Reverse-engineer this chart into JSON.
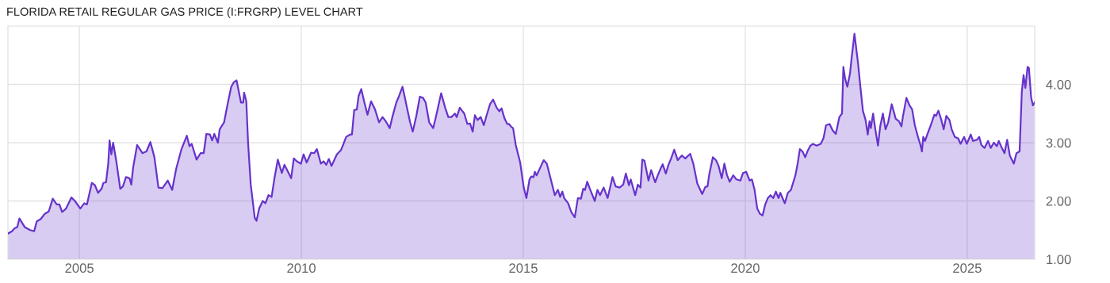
{
  "chart_data": {
    "type": "area",
    "title": "FLORIDA RETAIL REGULAR GAS PRICE (I:FRGRP) LEVEL CHART",
    "x": [
      2003.39,
      2003.48,
      2003.54,
      2003.6,
      2003.65,
      2003.77,
      2003.89,
      2003.98,
      2004.04,
      2004.13,
      2004.22,
      2004.31,
      2004.4,
      2004.49,
      2004.55,
      2004.61,
      2004.7,
      2004.82,
      2004.9,
      2005.02,
      2005.11,
      2005.17,
      2005.28,
      2005.35,
      2005.42,
      2005.5,
      2005.54,
      2005.6,
      2005.65,
      2005.68,
      2005.72,
      2005.76,
      2005.83,
      2005.92,
      2005.98,
      2006.05,
      2006.13,
      2006.17,
      2006.21,
      2006.3,
      2006.42,
      2006.51,
      2006.6,
      2006.69,
      2006.78,
      2006.87,
      2006.99,
      2007.09,
      2007.18,
      2007.3,
      2007.42,
      2007.48,
      2007.53,
      2007.64,
      2007.73,
      2007.8,
      2007.86,
      2007.94,
      2007.99,
      2008.04,
      2008.12,
      2008.16,
      2008.26,
      2008.33,
      2008.42,
      2008.48,
      2008.54,
      2008.64,
      2008.69,
      2008.71,
      2008.76,
      2008.8,
      2008.86,
      2008.95,
      2008.99,
      2009.05,
      2009.13,
      2009.19,
      2009.26,
      2009.33,
      2009.39,
      2009.47,
      2009.56,
      2009.62,
      2009.7,
      2009.77,
      2009.83,
      2009.9,
      2009.99,
      2010.05,
      2010.12,
      2010.22,
      2010.29,
      2010.35,
      2010.44,
      2010.5,
      2010.56,
      2010.62,
      2010.68,
      2010.8,
      2010.89,
      2010.95,
      2011.01,
      2011.1,
      2011.14,
      2011.19,
      2011.25,
      2011.29,
      2011.35,
      2011.42,
      2011.49,
      2011.57,
      2011.66,
      2011.75,
      2011.83,
      2011.9,
      2011.99,
      2012.05,
      2012.14,
      2012.2,
      2012.28,
      2012.38,
      2012.45,
      2012.51,
      2012.59,
      2012.67,
      2012.74,
      2012.8,
      2012.88,
      2012.97,
      2013.03,
      2013.15,
      2013.24,
      2013.31,
      2013.38,
      2013.46,
      2013.5,
      2013.57,
      2013.61,
      2013.67,
      2013.74,
      2013.8,
      2013.86,
      2013.91,
      2013.97,
      2014.04,
      2014.11,
      2014.17,
      2014.25,
      2014.32,
      2014.4,
      2014.46,
      2014.51,
      2014.58,
      2014.64,
      2014.68,
      2014.73,
      2014.77,
      2014.83,
      2014.93,
      2015.01,
      2015.07,
      2015.14,
      2015.18,
      2015.23,
      2015.26,
      2015.3,
      2015.38,
      2015.46,
      2015.53,
      2015.62,
      2015.71,
      2015.78,
      2015.83,
      2015.88,
      2015.92,
      2016.01,
      2016.08,
      2016.16,
      2016.23,
      2016.3,
      2016.35,
      2016.39,
      2016.44,
      2016.51,
      2016.61,
      2016.67,
      2016.73,
      2016.81,
      2016.9,
      2017.01,
      2017.08,
      2017.17,
      2017.25,
      2017.31,
      2017.38,
      2017.42,
      2017.52,
      2017.58,
      2017.64,
      2017.68,
      2017.73,
      2017.82,
      2017.88,
      2017.97,
      2018.03,
      2018.09,
      2018.14,
      2018.21,
      2018.27,
      2018.33,
      2018.4,
      2018.48,
      2018.57,
      2018.65,
      2018.76,
      2018.83,
      2018.92,
      2019.03,
      2019.1,
      2019.15,
      2019.19,
      2019.27,
      2019.34,
      2019.4,
      2019.47,
      2019.53,
      2019.59,
      2019.65,
      2019.73,
      2019.8,
      2019.89,
      2019.95,
      2020.02,
      2020.1,
      2020.15,
      2020.21,
      2020.27,
      2020.33,
      2020.39,
      2020.45,
      2020.51,
      2020.57,
      2020.63,
      2020.69,
      2020.75,
      2020.79,
      2020.89,
      2020.96,
      2021.03,
      2021.13,
      2021.18,
      2021.23,
      2021.29,
      2021.35,
      2021.4,
      2021.46,
      2021.52,
      2021.61,
      2021.7,
      2021.76,
      2021.82,
      2021.9,
      2021.97,
      2022.04,
      2022.12,
      2022.18,
      2022.21,
      2022.25,
      2022.3,
      2022.36,
      2022.4,
      2022.46,
      2022.54,
      2022.6,
      2022.65,
      2022.71,
      2022.76,
      2022.8,
      2022.83,
      2022.88,
      2022.93,
      2022.99,
      2023.04,
      2023.1,
      2023.16,
      2023.22,
      2023.3,
      2023.39,
      2023.46,
      2023.52,
      2023.55,
      2023.63,
      2023.7,
      2023.76,
      2023.82,
      2023.89,
      2023.94,
      2023.98,
      2024.01,
      2024.05,
      2024.11,
      2024.18,
      2024.26,
      2024.3,
      2024.35,
      2024.41,
      2024.47,
      2024.53,
      2024.6,
      2024.65,
      2024.72,
      2024.8,
      2024.85,
      2024.93,
      2024.99,
      2025.08,
      2025.13,
      2025.22,
      2025.27,
      2025.32,
      2025.39,
      2025.47,
      2025.53,
      2025.6,
      2025.67,
      2025.71,
      2025.78,
      2025.84,
      2025.9,
      2025.96,
      2026.05,
      2026.11,
      2026.18,
      2026.23,
      2026.27,
      2026.31,
      2026.36,
      2026.39,
      2026.44,
      2026.48,
      2026.52
    ],
    "series": [
      {
        "color": "#6633cc",
        "values": [
          1.44,
          1.48,
          1.53,
          1.55,
          1.7,
          1.55,
          1.5,
          1.48,
          1.65,
          1.69,
          1.78,
          1.82,
          2.04,
          1.94,
          1.94,
          1.81,
          1.87,
          2.06,
          2.0,
          1.87,
          1.96,
          1.94,
          2.31,
          2.27,
          2.14,
          2.21,
          2.31,
          2.32,
          2.64,
          3.04,
          2.8,
          3.0,
          2.69,
          2.21,
          2.25,
          2.41,
          2.39,
          2.28,
          2.57,
          2.96,
          2.82,
          2.85,
          3.01,
          2.75,
          2.23,
          2.22,
          2.35,
          2.19,
          2.55,
          2.89,
          3.12,
          2.94,
          2.98,
          2.71,
          2.82,
          2.82,
          3.15,
          3.14,
          3.04,
          3.15,
          3.0,
          3.23,
          3.35,
          3.63,
          3.96,
          4.04,
          4.07,
          3.69,
          3.69,
          3.86,
          3.71,
          3.0,
          2.28,
          1.71,
          1.66,
          1.87,
          2.0,
          1.96,
          2.1,
          2.07,
          2.37,
          2.71,
          2.48,
          2.62,
          2.5,
          2.39,
          2.73,
          2.68,
          2.64,
          2.8,
          2.66,
          2.83,
          2.82,
          2.89,
          2.64,
          2.68,
          2.62,
          2.72,
          2.6,
          2.8,
          2.87,
          2.98,
          3.1,
          3.14,
          3.14,
          3.56,
          3.57,
          3.8,
          3.92,
          3.69,
          3.48,
          3.71,
          3.57,
          3.35,
          3.44,
          3.37,
          3.25,
          3.44,
          3.69,
          3.8,
          3.96,
          3.6,
          3.35,
          3.19,
          3.46,
          3.79,
          3.77,
          3.69,
          3.35,
          3.25,
          3.44,
          3.85,
          3.6,
          3.44,
          3.44,
          3.5,
          3.44,
          3.6,
          3.56,
          3.5,
          3.32,
          3.33,
          3.19,
          3.47,
          3.39,
          3.44,
          3.3,
          3.46,
          3.66,
          3.74,
          3.6,
          3.54,
          3.59,
          3.41,
          3.32,
          3.32,
          3.27,
          3.25,
          2.96,
          2.66,
          2.23,
          2.05,
          2.37,
          2.42,
          2.41,
          2.5,
          2.44,
          2.57,
          2.7,
          2.64,
          2.37,
          2.1,
          2.19,
          2.07,
          2.16,
          2.05,
          1.96,
          1.81,
          1.72,
          2.05,
          2.04,
          2.21,
          2.19,
          2.33,
          2.19,
          2.0,
          2.19,
          2.1,
          2.23,
          2.05,
          2.41,
          2.25,
          2.23,
          2.28,
          2.47,
          2.27,
          2.37,
          2.1,
          2.28,
          2.23,
          2.71,
          2.69,
          2.35,
          2.53,
          2.32,
          2.44,
          2.55,
          2.63,
          2.47,
          2.62,
          2.73,
          2.88,
          2.7,
          2.78,
          2.73,
          2.81,
          2.64,
          2.3,
          2.12,
          2.24,
          2.25,
          2.46,
          2.75,
          2.7,
          2.6,
          2.39,
          2.64,
          2.44,
          2.33,
          2.44,
          2.37,
          2.35,
          2.48,
          2.5,
          2.35,
          2.37,
          2.19,
          1.87,
          1.78,
          1.75,
          1.94,
          2.05,
          2.1,
          2.05,
          2.16,
          2.05,
          2.14,
          1.96,
          2.14,
          2.19,
          2.44,
          2.64,
          2.89,
          2.85,
          2.75,
          2.85,
          2.94,
          2.98,
          2.95,
          2.98,
          3.07,
          3.3,
          3.32,
          3.21,
          3.15,
          3.44,
          3.5,
          4.3,
          4.1,
          3.96,
          4.19,
          4.48,
          4.87,
          4.37,
          3.91,
          3.55,
          3.39,
          3.14,
          3.37,
          3.25,
          3.5,
          3.23,
          2.95,
          3.28,
          3.5,
          3.23,
          3.35,
          3.66,
          3.41,
          3.37,
          3.28,
          3.44,
          3.77,
          3.64,
          3.57,
          3.3,
          3.1,
          2.98,
          2.85,
          3.1,
          3.03,
          3.16,
          3.3,
          3.48,
          3.46,
          3.55,
          3.41,
          3.23,
          3.46,
          3.39,
          3.23,
          3.1,
          3.07,
          2.98,
          3.1,
          2.98,
          3.14,
          3.03,
          3.05,
          3.1,
          2.96,
          2.91,
          3.03,
          2.91,
          3.0,
          2.94,
          3.03,
          2.91,
          2.82,
          3.05,
          2.78,
          2.64,
          2.82,
          2.85,
          3.87,
          4.16,
          3.94,
          4.3,
          4.28,
          3.78,
          3.64,
          3.69
        ]
      }
    ],
    "xlim": [
      2003.39,
      2026.52
    ],
    "xticks": [
      2005,
      2010,
      2015,
      2020,
      2025
    ],
    "ylim": [
      1,
      5
    ],
    "yticks": [
      {
        "value": 1,
        "label": "1.00"
      },
      {
        "value": 2,
        "label": "2.00"
      },
      {
        "value": 3,
        "label": "3.00"
      },
      {
        "value": 4,
        "label": "4.00"
      }
    ],
    "grid": true
  }
}
